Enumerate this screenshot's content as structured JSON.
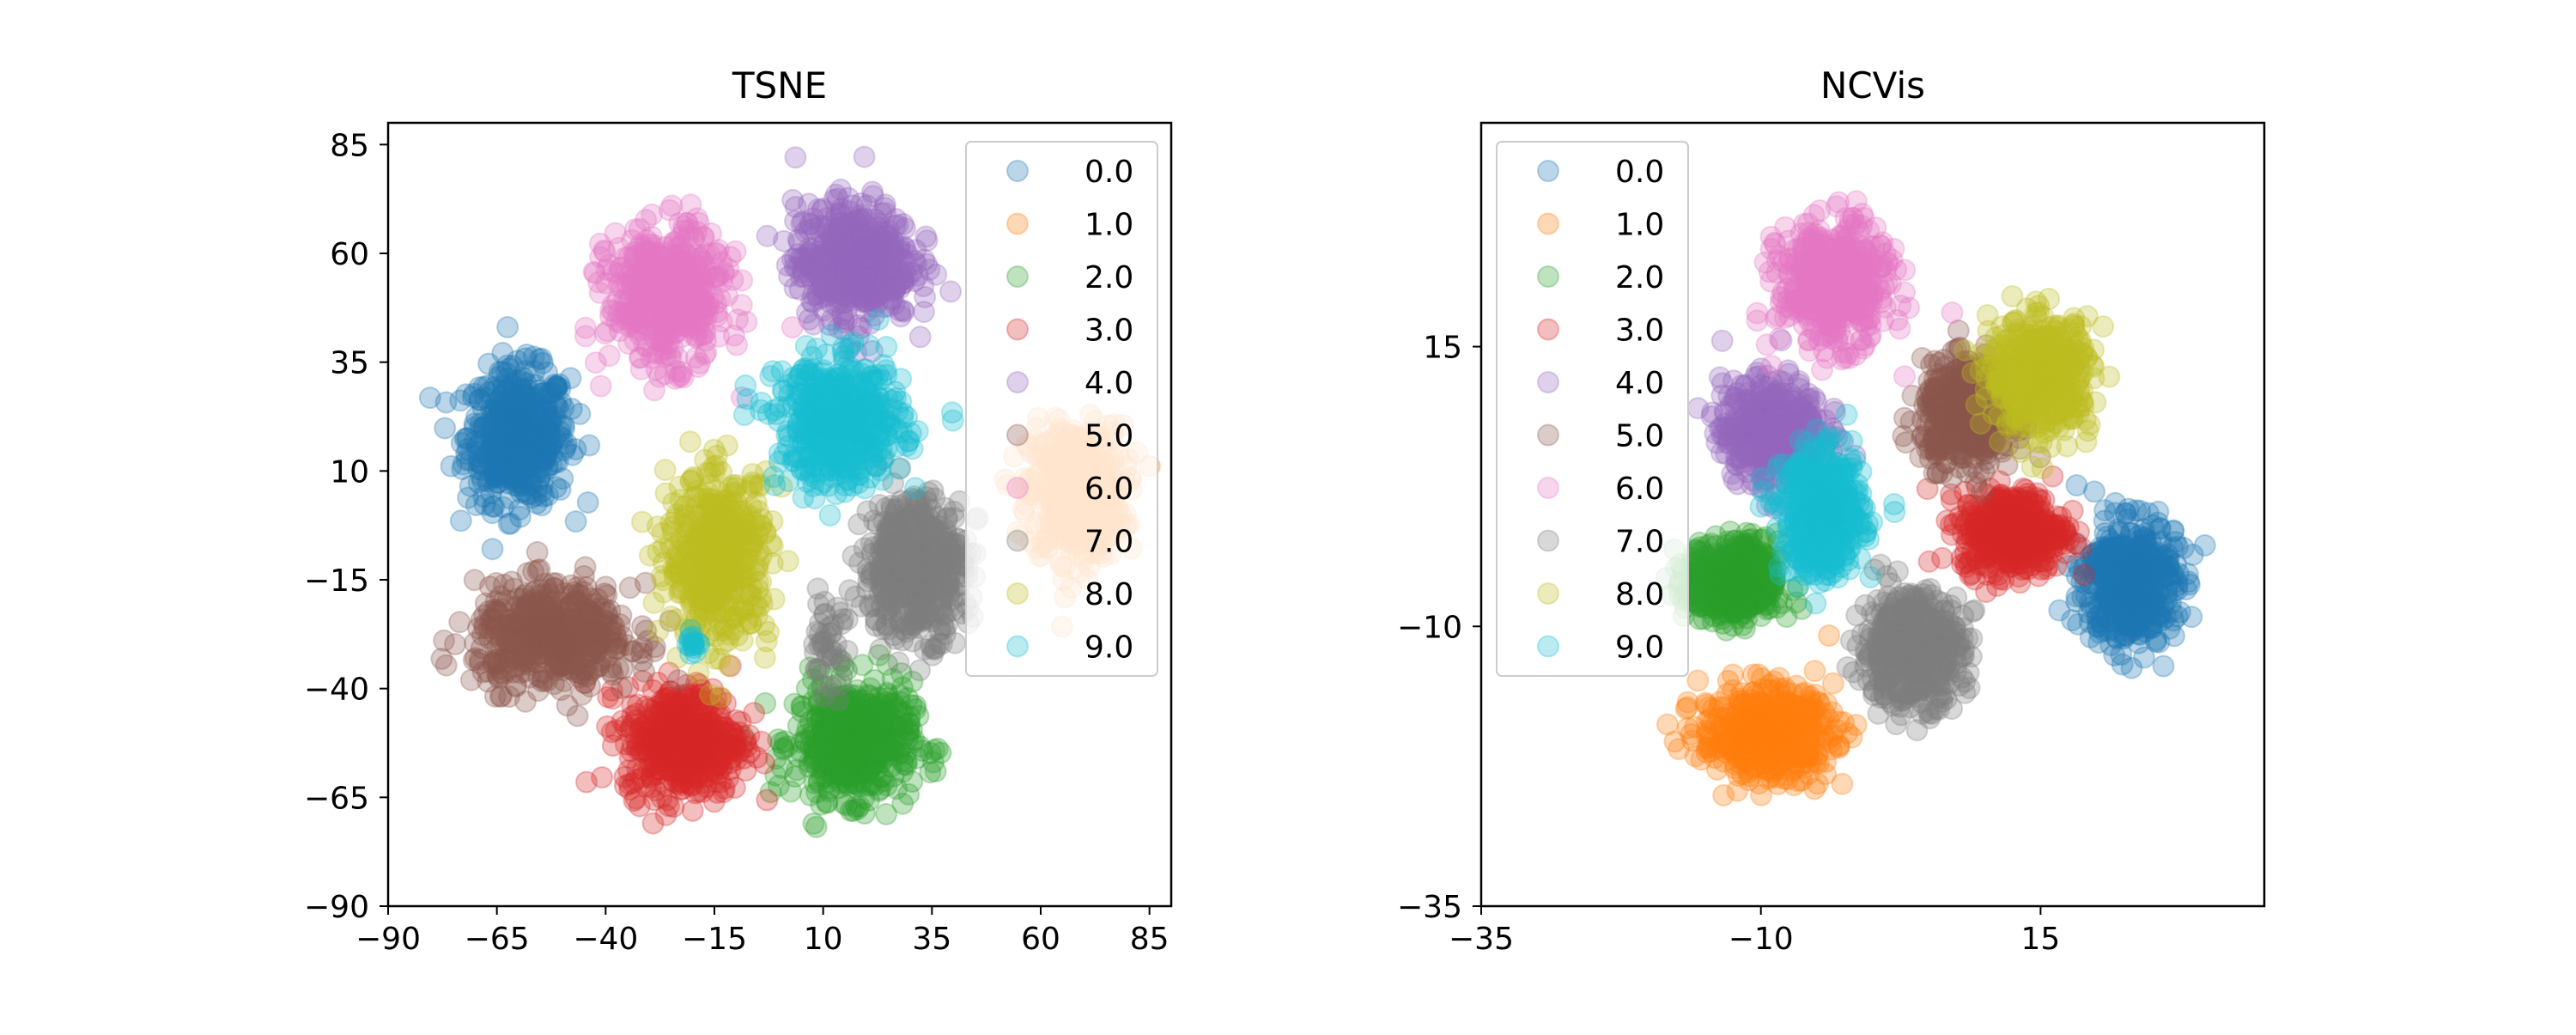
{
  "legend_labels": [
    "0.0",
    "1.0",
    "2.0",
    "3.0",
    "4.0",
    "5.0",
    "6.0",
    "7.0",
    "8.0",
    "9.0"
  ],
  "colors": [
    "#1f77b4",
    "#ff7f0e",
    "#2ca02c",
    "#d62728",
    "#9467bd",
    "#8c564b",
    "#e377c2",
    "#7f7f7f",
    "#bcbd22",
    "#17becf"
  ],
  "chart_data": [
    {
      "type": "scatter",
      "title": "TSNE",
      "xlabel": "",
      "ylabel": "",
      "xlim": [
        -90,
        90
      ],
      "ylim": [
        -90,
        90
      ],
      "xticks": [
        -90,
        -65,
        -40,
        -15,
        10,
        35,
        60,
        85
      ],
      "yticks": [
        -90,
        -65,
        -40,
        -15,
        10,
        35,
        60,
        85
      ],
      "xtick_labels": [
        "−90",
        "−65",
        "−40",
        "−15",
        "10",
        "35",
        "60",
        "85"
      ],
      "ytick_labels": [
        "−90",
        "−65",
        "−40",
        "−15",
        "10",
        "35",
        "60",
        "85"
      ],
      "legend_placement": "upper right",
      "grid": false,
      "marker_alpha": 0.3,
      "series": [
        {
          "name": "0.0",
          "clusters": [
            {
              "cx": -60,
              "cy": 18,
              "rx": 13,
              "ry": 17
            }
          ]
        },
        {
          "name": "1.0",
          "clusters": [
            {
              "cx": 68,
              "cy": 5,
              "rx": 12,
              "ry": 17
            }
          ]
        },
        {
          "name": "2.0",
          "clusters": [
            {
              "cx": 17,
              "cy": -52,
              "rx": 15,
              "ry": 15
            }
          ]
        },
        {
          "name": "3.0",
          "clusters": [
            {
              "cx": -22,
              "cy": -52,
              "rx": 15,
              "ry": 14
            }
          ]
        },
        {
          "name": "4.0",
          "clusters": [
            {
              "cx": 17,
              "cy": 58,
              "rx": 15,
              "ry": 15
            }
          ]
        },
        {
          "name": "5.0",
          "clusters": [
            {
              "cx": -52,
              "cy": -28,
              "rx": 20,
              "ry": 13
            }
          ]
        },
        {
          "name": "6.0",
          "clusters": [
            {
              "cx": -26,
              "cy": 50,
              "rx": 15,
              "ry": 17
            }
          ]
        },
        {
          "name": "7.0",
          "clusters": [
            {
              "cx": 31,
              "cy": -12,
              "rx": 13,
              "ry": 18
            },
            {
              "cx": 11,
              "cy": -30,
              "rx": 5,
              "ry": 11
            }
          ]
        },
        {
          "name": "8.0",
          "clusters": [
            {
              "cx": -14,
              "cy": -10,
              "rx": 13,
              "ry": 21
            }
          ]
        },
        {
          "name": "9.0",
          "clusters": [
            {
              "cx": 14,
              "cy": 21,
              "rx": 16,
              "ry": 16
            },
            {
              "cx": -20,
              "cy": -30,
              "rx": 2,
              "ry": 3
            }
          ]
        }
      ]
    },
    {
      "type": "scatter",
      "title": "NCVis",
      "xlabel": "",
      "ylabel": "",
      "xlim": [
        -35,
        35
      ],
      "ylim": [
        -35,
        35
      ],
      "xticks": [
        -35,
        -10,
        15
      ],
      "yticks": [
        -35,
        -10,
        15
      ],
      "xtick_labels": [
        "−35",
        "−10",
        "15"
      ],
      "ytick_labels": [
        "−35",
        "−10",
        "15"
      ],
      "legend_placement": "upper left",
      "grid": false,
      "marker_alpha": 0.3,
      "series": [
        {
          "name": "0.0",
          "clusters": [
            {
              "cx": 23,
              "cy": -6,
              "rx": 4.5,
              "ry": 6
            }
          ]
        },
        {
          "name": "1.0",
          "clusters": [
            {
              "cx": -9.5,
              "cy": -19.5,
              "rx": 6.5,
              "ry": 4.5
            }
          ]
        },
        {
          "name": "2.0",
          "clusters": [
            {
              "cx": -12.5,
              "cy": -6,
              "rx": 4.5,
              "ry": 4
            }
          ]
        },
        {
          "name": "3.0",
          "clusters": [
            {
              "cx": 12.5,
              "cy": -1.5,
              "rx": 5,
              "ry": 4
            }
          ]
        },
        {
          "name": "4.0",
          "clusters": [
            {
              "cx": -9,
              "cy": 7.5,
              "rx": 5,
              "ry": 5
            }
          ]
        },
        {
          "name": "5.0",
          "clusters": [
            {
              "cx": 8.5,
              "cy": 9,
              "rx": 4.5,
              "ry": 5
            }
          ]
        },
        {
          "name": "6.0",
          "clusters": [
            {
              "cx": -3.5,
              "cy": 20.5,
              "rx": 5.5,
              "ry": 6
            }
          ]
        },
        {
          "name": "7.0",
          "clusters": [
            {
              "cx": 3.5,
              "cy": -12,
              "rx": 5,
              "ry": 5.5
            }
          ]
        },
        {
          "name": "8.0",
          "clusters": [
            {
              "cx": 15,
              "cy": 12.5,
              "rx": 5,
              "ry": 5.5
            }
          ]
        },
        {
          "name": "9.0",
          "clusters": [
            {
              "cx": -4.5,
              "cy": 0,
              "rx": 4,
              "ry": 6
            }
          ]
        }
      ]
    }
  ]
}
